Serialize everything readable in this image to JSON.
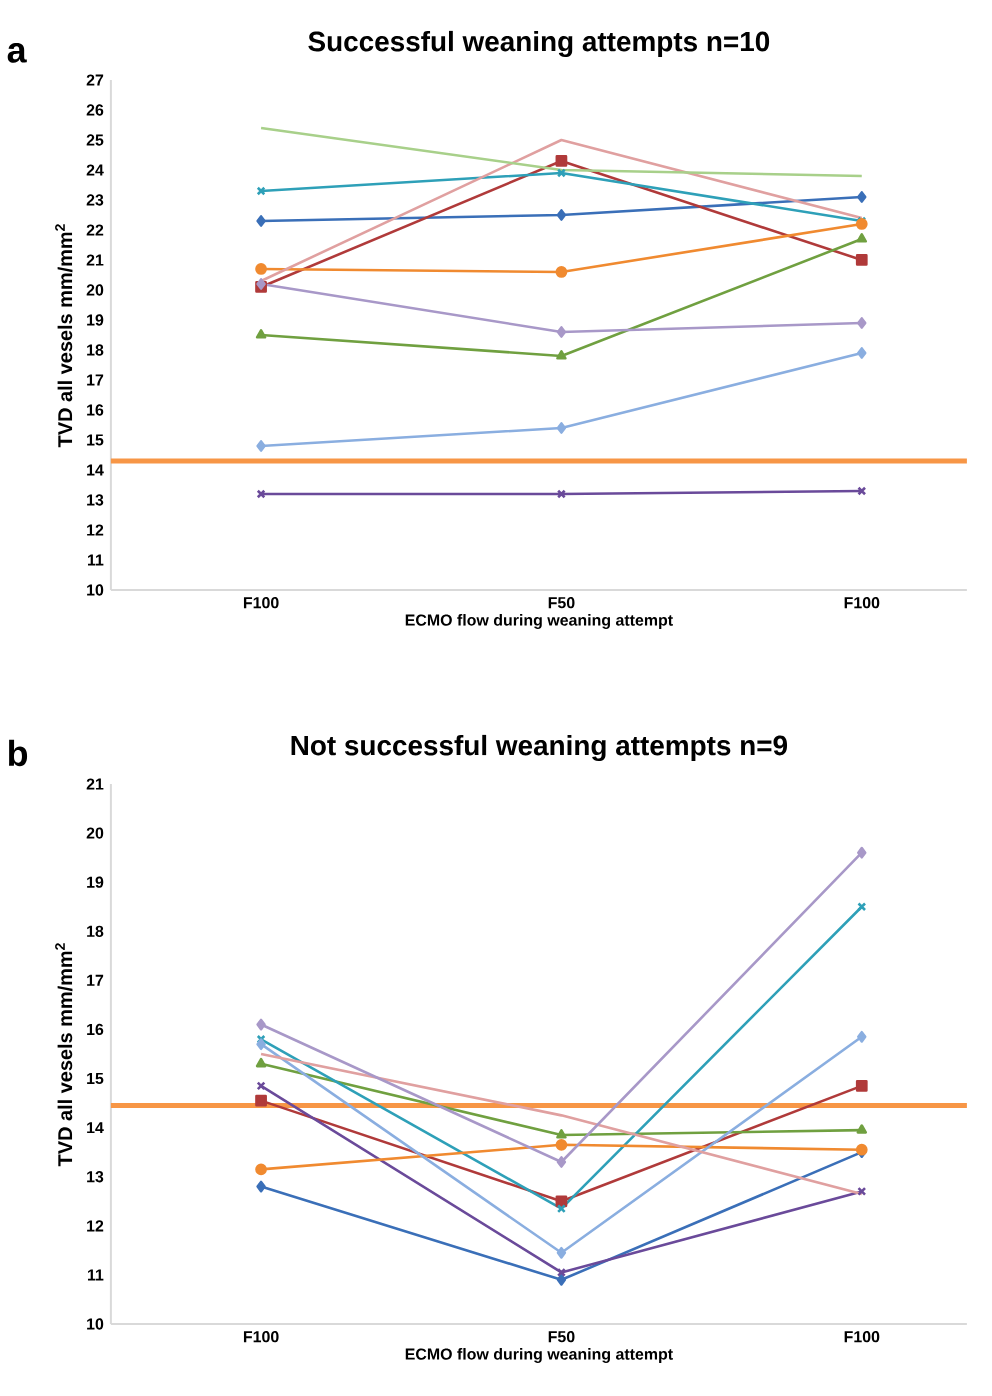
{
  "chart_data": [
    {
      "type": "line",
      "title": "Successful weaning attempts n=10",
      "xlabel": "ECMO flow during weaning attempt",
      "ylabel": "TVD all vesels mm/mm$^{2}$",
      "annotations": [
        "a"
      ],
      "categories": [
        "F100",
        "F50",
        "F100"
      ],
      "ylim": [
        10,
        27
      ],
      "yticks": [
        10,
        11,
        12,
        13,
        14,
        15,
        16,
        17,
        18,
        19,
        20,
        21,
        22,
        23,
        24,
        25,
        26,
        27
      ],
      "ref_lines": [
        {
          "axis": "y",
          "value": 14.3,
          "color": "#f79646"
        }
      ],
      "series": [
        {
          "color": "#3a6fb8",
          "marker": "diamond",
          "values": [
            22.3,
            22.5,
            23.1
          ]
        },
        {
          "color": "#b03a3a",
          "marker": "square",
          "values": [
            20.1,
            24.3,
            21.0
          ]
        },
        {
          "color": "#70a040",
          "marker": "triangle",
          "values": [
            18.5,
            17.8,
            21.7
          ]
        },
        {
          "color": "#6a4a9a",
          "marker": "cross",
          "values": [
            13.2,
            13.2,
            13.3
          ]
        },
        {
          "color": "#2ea0b8",
          "marker": "cross",
          "values": [
            23.3,
            23.9,
            22.3
          ]
        },
        {
          "color": "#f08a30",
          "marker": "circle",
          "values": [
            20.7,
            20.6,
            22.2
          ]
        },
        {
          "color": "#8aaee0",
          "marker": "diamond",
          "values": [
            14.8,
            15.4,
            17.9
          ]
        },
        {
          "color": "#e0a0a0",
          "marker": "none",
          "values": [
            20.3,
            25.0,
            22.4
          ]
        },
        {
          "color": "#a8d08a",
          "marker": "none",
          "values": [
            25.4,
            24.0,
            23.8
          ]
        },
        {
          "color": "#a898c8",
          "marker": "diamond",
          "values": [
            20.2,
            18.6,
            18.9
          ]
        }
      ]
    },
    {
      "type": "line",
      "title": "Not successful weaning attempts n=9",
      "xlabel": "ECMO flow during weaning attempt",
      "ylabel": "TVD all vesels mm/mm$^{2}$",
      "annotations": [
        "b"
      ],
      "categories": [
        "F100",
        "F50",
        "F100"
      ],
      "ylim": [
        10,
        21
      ],
      "yticks": [
        10,
        11,
        12,
        13,
        14,
        15,
        16,
        17,
        18,
        19,
        20,
        21
      ],
      "ref_lines": [
        {
          "axis": "y",
          "value": 14.45,
          "color": "#f79646"
        }
      ],
      "series": [
        {
          "color": "#3a6fb8",
          "marker": "diamond",
          "values": [
            12.8,
            10.9,
            13.5
          ]
        },
        {
          "color": "#b03a3a",
          "marker": "square",
          "values": [
            14.55,
            12.5,
            14.85
          ]
        },
        {
          "color": "#70a040",
          "marker": "triangle",
          "values": [
            15.3,
            13.85,
            13.95
          ]
        },
        {
          "color": "#6a4a9a",
          "marker": "cross",
          "values": [
            14.85,
            11.05,
            12.7
          ]
        },
        {
          "color": "#2ea0b8",
          "marker": "cross",
          "values": [
            15.8,
            12.35,
            18.5
          ]
        },
        {
          "color": "#f08a30",
          "marker": "circle",
          "values": [
            13.15,
            13.65,
            13.55
          ]
        },
        {
          "color": "#8aaee0",
          "marker": "diamond",
          "values": [
            15.7,
            11.45,
            15.85
          ]
        },
        {
          "color": "#e0a0a0",
          "marker": "none",
          "values": [
            15.5,
            14.25,
            12.65
          ]
        },
        {
          "color": "#a898c8",
          "marker": "diamond",
          "values": [
            16.1,
            13.3,
            19.6
          ]
        }
      ]
    }
  ]
}
